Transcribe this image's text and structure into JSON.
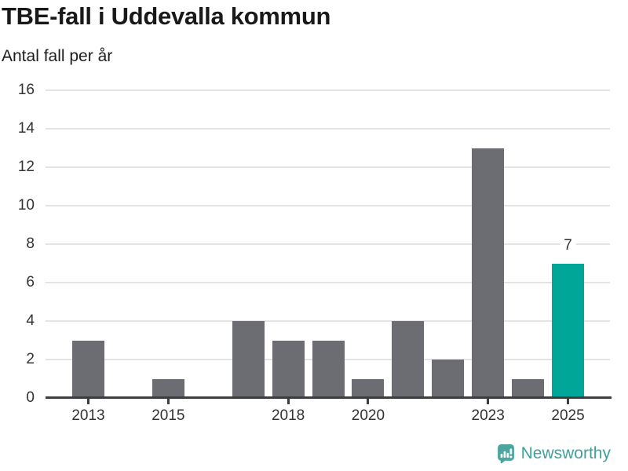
{
  "header": {
    "title": "TBE-fall i Uddevalla kommun",
    "subtitle": "Antal fall per år"
  },
  "chart_data": {
    "type": "bar",
    "title": "TBE-fall i Uddevalla kommun",
    "ylabel": "Antal fall per år",
    "xlabel": "",
    "categories": [
      "2013",
      "2014",
      "2015",
      "2016",
      "2017",
      "2018",
      "2019",
      "2020",
      "2021",
      "2022",
      "2023",
      "2024",
      "2025"
    ],
    "values": [
      3,
      0,
      1,
      0,
      4,
      3,
      3,
      1,
      4,
      2,
      13,
      1,
      7
    ],
    "ylim": [
      0,
      16
    ],
    "y_ticks": [
      0,
      2,
      4,
      6,
      8,
      10,
      12,
      14,
      16
    ],
    "x_tick_labels": [
      "2013",
      "2015",
      "2018",
      "2020",
      "2023",
      "2025"
    ],
    "grid": "horizontal",
    "legend": "none",
    "highlight": {
      "category": "2025",
      "value": 7,
      "label": "7"
    },
    "colors": {
      "bar": "#6C6C73",
      "highlight": "#00A698",
      "grid": "#E4E4E4",
      "axis": "#3D3D3D",
      "tick_text": "#333333"
    }
  },
  "footer": {
    "brand": "Newsworthy",
    "logo_icon": "newsworthy-speech-bubble-bar-chart-icon",
    "brand_color": "#3FA09C",
    "icon_color": "#4AA5A1"
  }
}
